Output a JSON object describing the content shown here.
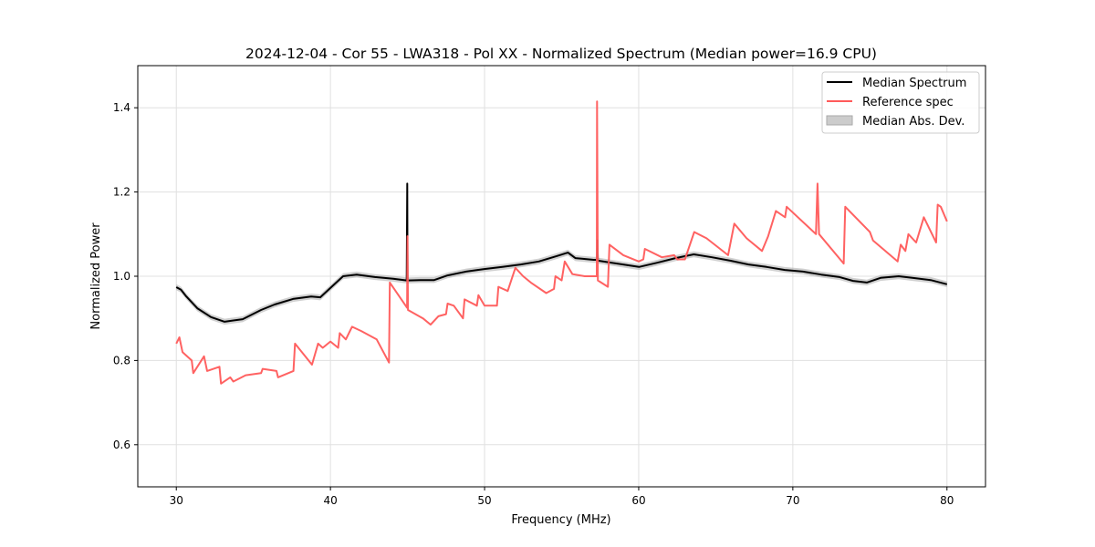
{
  "chart_data": {
    "type": "line",
    "title": "2024-12-04 - Cor 55 - LWA318 - Pol XX - Normalized Spectrum (Median power=16.9 CPU)",
    "xlabel": "Frequency (MHz)",
    "ylabel": "Normalized Power",
    "xlim": [
      27.5,
      82.5
    ],
    "ylim": [
      0.5,
      1.5
    ],
    "xticks": [
      30,
      40,
      50,
      60,
      70,
      80
    ],
    "yticks": [
      0.6,
      0.8,
      1.0,
      1.2,
      1.4
    ],
    "xtick_labels": [
      "30",
      "40",
      "50",
      "60",
      "70",
      "80"
    ],
    "ytick_labels": [
      "0.6",
      "0.8",
      "1.0",
      "1.2",
      "1.4"
    ],
    "grid": true,
    "legend_position": "top-right",
    "legend": [
      "Median Spectrum",
      "Reference spec",
      "Median Abs. Dev."
    ],
    "colors": {
      "median": "#000000",
      "reference": "#ff5a5a",
      "mad": "#b0b0b0"
    },
    "mad_halfwidth": 0.007,
    "series": [
      {
        "name": "Median Spectrum",
        "x": [
          30,
          30.3,
          30.65,
          31.36,
          32.25,
          33.13,
          34.31,
          35.5,
          36.38,
          37.57,
          38.75,
          39.34,
          40.05,
          40.82,
          41.7,
          42.88,
          44.07,
          44.95,
          44.98,
          45.0,
          45.84,
          46.73,
          47.6,
          48.8,
          49.98,
          51.16,
          52.34,
          53.52,
          54.7,
          55.41,
          55.89,
          57.07,
          57.3,
          57.32,
          57.35,
          58.25,
          60.02,
          61.2,
          62.39,
          63.57,
          64.75,
          65.93,
          67.12,
          68.3,
          69.48,
          70.66,
          71.84,
          73.03,
          73.91,
          74.8,
          75.69,
          76.87,
          77.75,
          78.94,
          80
        ],
        "y": [
          0.974,
          0.968,
          0.952,
          0.924,
          0.903,
          0.892,
          0.898,
          0.92,
          0.933,
          0.946,
          0.952,
          0.95,
          0.974,
          1.0,
          1.004,
          0.998,
          0.994,
          0.99,
          1.22,
          0.99,
          0.991,
          0.991,
          1.002,
          1.011,
          1.017,
          1.022,
          1.028,
          1.035,
          1.048,
          1.056,
          1.043,
          1.039,
          1.039,
          1.085,
          1.037,
          1.032,
          1.022,
          1.032,
          1.043,
          1.052,
          1.045,
          1.037,
          1.028,
          1.022,
          1.015,
          1.011,
          1.004,
          0.998,
          0.989,
          0.985,
          0.996,
          1.0,
          0.996,
          0.991,
          0.981
        ]
      },
      {
        "name": "Reference spec",
        "x": [
          30,
          30.2,
          30.4,
          31,
          31.1,
          31.8,
          32,
          32.8,
          32.9,
          33.5,
          33.7,
          34.5,
          35.5,
          35.6,
          36.5,
          36.6,
          37.6,
          37.7,
          38.8,
          39.2,
          39.5,
          40,
          40.5,
          40.6,
          41,
          41.4,
          42,
          43,
          43.8,
          43.85,
          44.97,
          45.0,
          45.03,
          46,
          46.5,
          47,
          47.5,
          47.6,
          48,
          48.6,
          48.7,
          49.5,
          49.6,
          50,
          50.8,
          50.9,
          51.5,
          52,
          52.5,
          53,
          54,
          54.5,
          54.6,
          55,
          55.2,
          55.7,
          56.5,
          57.28,
          57.3,
          57.35,
          58,
          58.1,
          59,
          60,
          60.3,
          60.4,
          61.5,
          62.3,
          62.5,
          63,
          63.6,
          64.4,
          65.8,
          66.2,
          67,
          68,
          68.4,
          68.9,
          69.5,
          69.6,
          71.5,
          71.6,
          71.7,
          73.3,
          73.4,
          75,
          75.2,
          76.8,
          77,
          77.3,
          77.5,
          78,
          78.5,
          79.3,
          79.4,
          79.6,
          80
        ],
        "y": [
          0.84,
          0.855,
          0.82,
          0.8,
          0.77,
          0.81,
          0.775,
          0.785,
          0.745,
          0.76,
          0.75,
          0.765,
          0.77,
          0.78,
          0.775,
          0.76,
          0.775,
          0.84,
          0.79,
          0.84,
          0.83,
          0.845,
          0.83,
          0.865,
          0.85,
          0.88,
          0.87,
          0.85,
          0.795,
          0.985,
          0.925,
          1.095,
          0.92,
          0.9,
          0.885,
          0.905,
          0.91,
          0.935,
          0.93,
          0.9,
          0.945,
          0.93,
          0.955,
          0.93,
          0.93,
          0.975,
          0.965,
          1.02,
          1.0,
          0.985,
          0.96,
          0.97,
          1.0,
          0.99,
          1.035,
          1.005,
          1.0,
          1.0,
          1.415,
          0.99,
          0.975,
          1.075,
          1.05,
          1.035,
          1.04,
          1.065,
          1.045,
          1.05,
          1.04,
          1.04,
          1.105,
          1.09,
          1.05,
          1.125,
          1.09,
          1.06,
          1.095,
          1.155,
          1.14,
          1.165,
          1.1,
          1.22,
          1.1,
          1.03,
          1.165,
          1.105,
          1.085,
          1.035,
          1.075,
          1.06,
          1.1,
          1.08,
          1.14,
          1.08,
          1.17,
          1.165,
          1.13
        ]
      }
    ]
  }
}
